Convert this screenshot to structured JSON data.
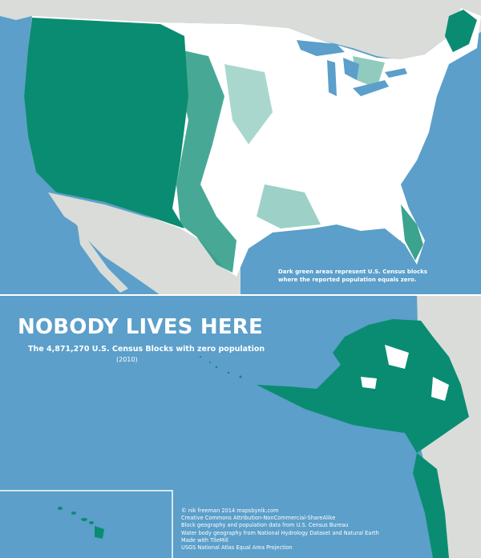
{
  "title": "NOBODY LIVES HERE",
  "subtitle": "The 4,871,270 U.S. Census Blocks with zero population",
  "year": "(2010)",
  "legend": {
    "lines": [
      "Dark green areas represent U.S. Census blocks",
      "where the reported population equals zero."
    ]
  },
  "credits": [
    "© nik freeman 2014  mapsbynik.com",
    "Creative Commons Attribution-NonCommercial-ShareAlike",
    "Block geography and population data from U.S. Census Bureau",
    "Water body geography from National Hydrology Dataset and Natural Earth",
    "Made with TileMill",
    "USGS National Atlas Equal Area Projection"
  ],
  "colors": {
    "water": "#5b9fca",
    "land": "#d9dcd8",
    "unpopulated": "#0a8c72",
    "populated": "#ffffff"
  },
  "regions": [
    "contiguous-us",
    "alaska",
    "hawaii"
  ]
}
